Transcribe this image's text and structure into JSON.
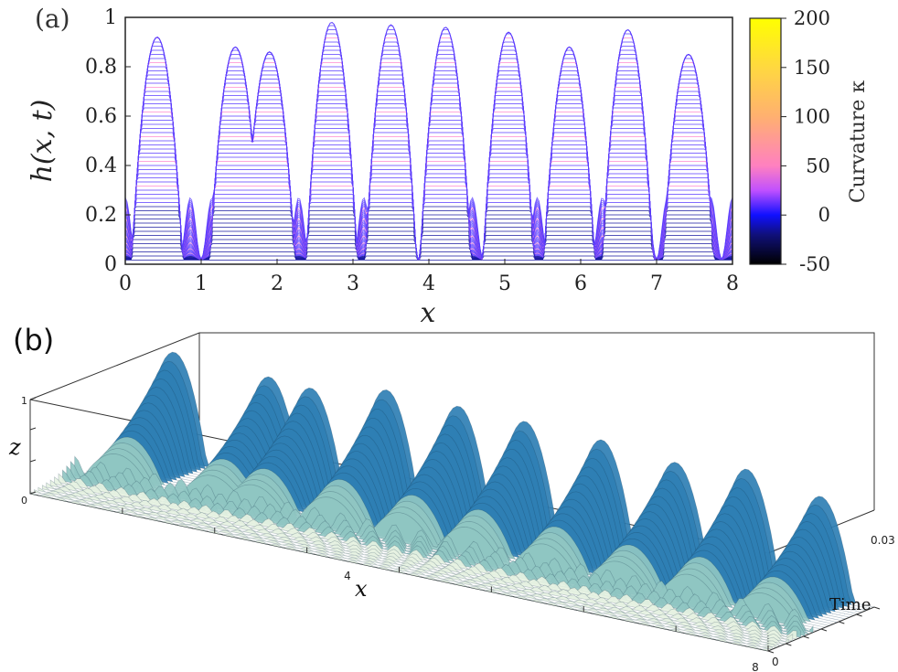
{
  "chart_data": [
    {
      "type": "line",
      "panel_label": "(a)",
      "xlabel": "x",
      "ylabel": "h(x, t)",
      "xlim": [
        0,
        8
      ],
      "ylim": [
        0,
        1
      ],
      "x_ticks": [
        0,
        1,
        2,
        3,
        4,
        5,
        6,
        7,
        8
      ],
      "y_ticks": [
        0,
        0.2,
        0.4,
        0.6,
        0.8,
        1
      ],
      "x_tick_labels": [
        "0",
        "1",
        "2",
        "3",
        "4",
        "5",
        "6",
        "7",
        "8"
      ],
      "y_tick_labels": [
        "0",
        "0.2",
        "0.4",
        "0.6",
        "0.8",
        "1"
      ],
      "colorbar": {
        "label": "Curvature κ",
        "range": [
          -50,
          200
        ],
        "ticks": [
          -50,
          0,
          50,
          100,
          150,
          200
        ],
        "tick_labels": [
          "-50",
          "0",
          "50",
          "100",
          "150",
          "200"
        ],
        "colors": [
          "#000000",
          "#1010ff",
          "#ff80c0",
          "#ffb070",
          "#ffd840",
          "#ffff00"
        ]
      },
      "peaks": [
        {
          "x": 0.42,
          "h": 0.92
        },
        {
          "x": 1.45,
          "h": 0.88
        },
        {
          "x": 1.9,
          "h": 0.86
        },
        {
          "x": 2.72,
          "h": 0.98
        },
        {
          "x": 3.5,
          "h": 0.97
        },
        {
          "x": 4.22,
          "h": 0.96
        },
        {
          "x": 5.05,
          "h": 0.94
        },
        {
          "x": 5.85,
          "h": 0.88
        },
        {
          "x": 6.62,
          "h": 0.95
        },
        {
          "x": 7.42,
          "h": 0.85
        }
      ],
      "colors": {
        "profile": "#5a3cff",
        "cusp": "#ff8ad0",
        "trough": "#1a1aa0"
      }
    },
    {
      "type": "surface",
      "panel_label": "(b)",
      "xlabel": "x",
      "zlabel": "z",
      "tlabel": "Time",
      "x_tick_labels": [
        "4",
        "8"
      ],
      "z_tick_labels": [
        "0",
        "1"
      ],
      "t_tick_labels": [
        "0",
        "0.03"
      ],
      "colors": {
        "low": "#e6f2e2",
        "mid": "#8fc6c2",
        "high": "#2f7fb4",
        "shadow": "#0f2f48"
      }
    }
  ]
}
